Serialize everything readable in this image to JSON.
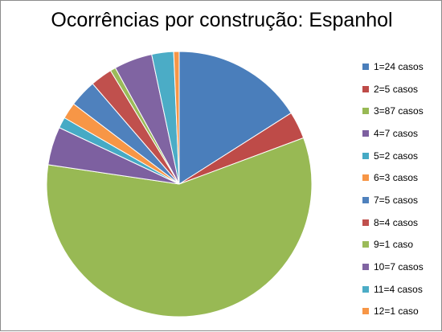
{
  "chart_data": {
    "type": "pie",
    "title": "Ocorrências por construção: Espanhol",
    "legend_position": "right",
    "slices": [
      {
        "label": "1=24 casos",
        "value": 24,
        "color": "#4A7EBB"
      },
      {
        "label": "2=5 casos",
        "value": 5,
        "color": "#BE4B48"
      },
      {
        "label": "3=87 casos",
        "value": 87,
        "color": "#98B954"
      },
      {
        "label": "4=7 casos",
        "value": 7,
        "color": "#7D60A0"
      },
      {
        "label": "5=2 casos",
        "value": 2,
        "color": "#46AAC5"
      },
      {
        "label": "6=3 casos",
        "value": 3,
        "color": "#F79646"
      },
      {
        "label": "7=5 casos",
        "value": 5,
        "color": "#4F81BD"
      },
      {
        "label": "8=4 casos",
        "value": 4,
        "color": "#C0504D"
      },
      {
        "label": "9=1 caso",
        "value": 1,
        "color": "#9BBB59"
      },
      {
        "label": "10=7 casos",
        "value": 7,
        "color": "#8064A2"
      },
      {
        "label": "11=4 casos",
        "value": 4,
        "color": "#4BACC6"
      },
      {
        "label": "12=1 caso",
        "value": 1,
        "color": "#F79646"
      }
    ]
  }
}
